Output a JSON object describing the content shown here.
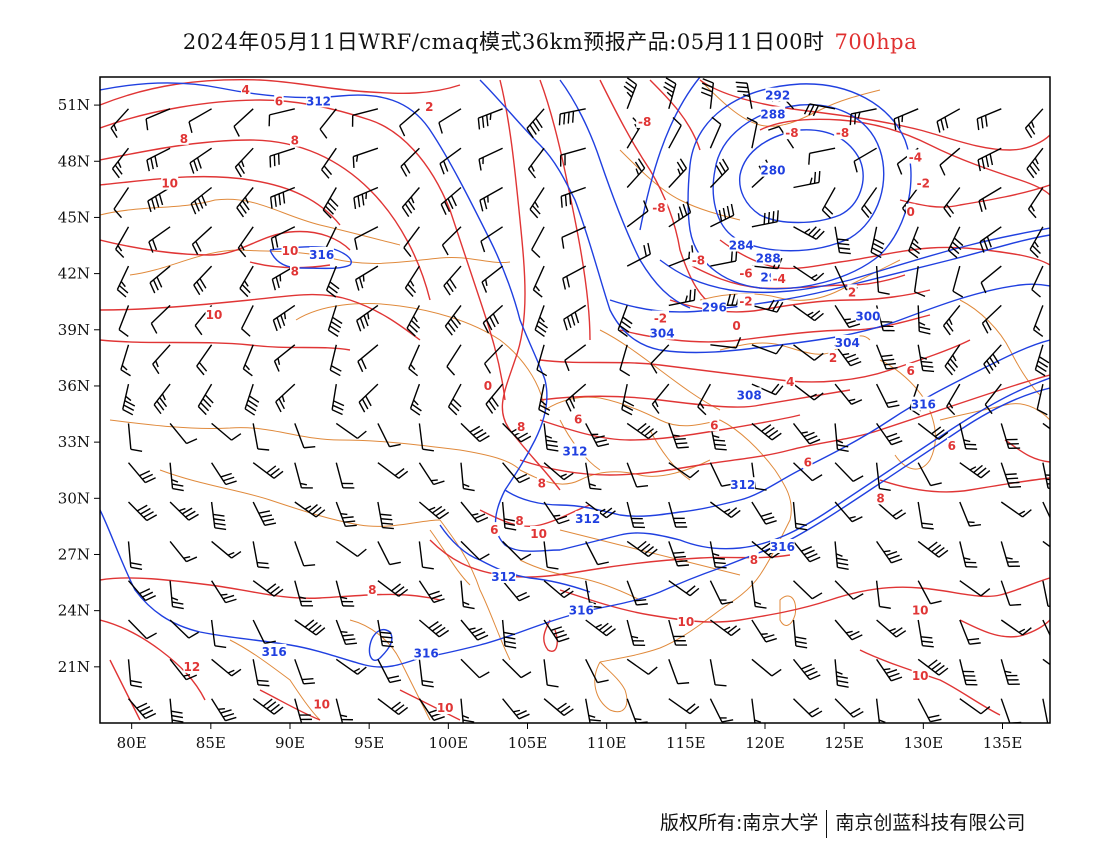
{
  "title": {
    "main": "2024年05月11日WRF/cmaq模式36km预报产品:05月11日00时",
    "level": "700hpa"
  },
  "axes": {
    "lon_min": 78,
    "lon_max": 138,
    "lat_min": 18,
    "lat_max": 52.5,
    "lat_ticks": [
      {
        "v": 51,
        "t": "51N"
      },
      {
        "v": 48,
        "t": "48N"
      },
      {
        "v": 45,
        "t": "45N"
      },
      {
        "v": 42,
        "t": "42N"
      },
      {
        "v": 39,
        "t": "39N"
      },
      {
        "v": 36,
        "t": "36N"
      },
      {
        "v": 33,
        "t": "33N"
      },
      {
        "v": 30,
        "t": "30N"
      },
      {
        "v": 27,
        "t": "27N"
      },
      {
        "v": 24,
        "t": "24N"
      },
      {
        "v": 21,
        "t": "21N"
      }
    ],
    "lon_ticks": [
      {
        "v": 80,
        "t": "80E"
      },
      {
        "v": 85,
        "t": "85E"
      },
      {
        "v": 90,
        "t": "90E"
      },
      {
        "v": 95,
        "t": "95E"
      },
      {
        "v": 100,
        "t": "100E"
      },
      {
        "v": 105,
        "t": "105E"
      },
      {
        "v": 110,
        "t": "110E"
      },
      {
        "v": 115,
        "t": "115E"
      },
      {
        "v": 120,
        "t": "120E"
      },
      {
        "v": 125,
        "t": "125E"
      },
      {
        "v": 130,
        "t": "130E"
      },
      {
        "v": 135,
        "t": "135E"
      }
    ]
  },
  "colors": {
    "height_contour": "#2040e0",
    "temperature_contour": "#e03535",
    "boundary": "#e08a3c",
    "wind_barb": "#000000",
    "frame": "#000000"
  },
  "height_labels": [
    {
      "t": "292",
      "lon": 120.8,
      "lat": 51.5
    },
    {
      "t": "288",
      "lon": 120.5,
      "lat": 50.5
    },
    {
      "t": "280",
      "lon": 120.5,
      "lat": 47.5
    },
    {
      "t": "284",
      "lon": 118.5,
      "lat": 43.5
    },
    {
      "t": "288",
      "lon": 120.2,
      "lat": 42.8
    },
    {
      "t": "292",
      "lon": 120.5,
      "lat": 41.8
    },
    {
      "t": "296",
      "lon": 116.8,
      "lat": 40.2
    },
    {
      "t": "300",
      "lon": 126.5,
      "lat": 39.7
    },
    {
      "t": "304",
      "lon": 125.2,
      "lat": 38.3
    },
    {
      "t": "304",
      "lon": 113.5,
      "lat": 38.8
    },
    {
      "t": "308",
      "lon": 119.0,
      "lat": 35.5
    },
    {
      "t": "312",
      "lon": 91.8,
      "lat": 51.2
    },
    {
      "t": "316",
      "lon": 92.0,
      "lat": 43.0
    },
    {
      "t": "312",
      "lon": 108.0,
      "lat": 32.5
    },
    {
      "t": "312",
      "lon": 118.6,
      "lat": 30.7
    },
    {
      "t": "312",
      "lon": 108.8,
      "lat": 28.9
    },
    {
      "t": "312",
      "lon": 103.5,
      "lat": 25.8
    },
    {
      "t": "316",
      "lon": 121.1,
      "lat": 27.4
    },
    {
      "t": "316",
      "lon": 108.4,
      "lat": 24.0
    },
    {
      "t": "316",
      "lon": 89.0,
      "lat": 21.8
    },
    {
      "t": "316",
      "lon": 98.6,
      "lat": 21.7
    },
    {
      "t": "316",
      "lon": 130.0,
      "lat": 35.0
    }
  ],
  "temperature_labels": [
    {
      "t": "4",
      "lon": 87.2,
      "lat": 51.8
    },
    {
      "t": "6",
      "lon": 89.3,
      "lat": 51.2
    },
    {
      "t": "2",
      "lon": 98.8,
      "lat": 50.9
    },
    {
      "t": "8",
      "lon": 83.3,
      "lat": 49.2
    },
    {
      "t": "8",
      "lon": 90.3,
      "lat": 49.1
    },
    {
      "t": "10",
      "lon": 82.4,
      "lat": 46.8
    },
    {
      "t": "-8",
      "lon": 112.4,
      "lat": 50.1
    },
    {
      "t": "-8",
      "lon": 121.7,
      "lat": 49.5
    },
    {
      "t": "-8",
      "lon": 124.9,
      "lat": 49.5
    },
    {
      "t": "-4",
      "lon": 129.5,
      "lat": 48.2
    },
    {
      "t": "-2",
      "lon": 130.0,
      "lat": 46.8
    },
    {
      "t": "0",
      "lon": 129.2,
      "lat": 45.3
    },
    {
      "t": "-8",
      "lon": 113.3,
      "lat": 45.5
    },
    {
      "t": "10",
      "lon": 90.0,
      "lat": 43.2
    },
    {
      "t": "8",
      "lon": 90.3,
      "lat": 42.1
    },
    {
      "t": "-8",
      "lon": 115.8,
      "lat": 42.7
    },
    {
      "t": "-6",
      "lon": 118.8,
      "lat": 42.0
    },
    {
      "t": "-4",
      "lon": 120.9,
      "lat": 41.7
    },
    {
      "t": "-2",
      "lon": 118.8,
      "lat": 40.5
    },
    {
      "t": "2",
      "lon": 125.5,
      "lat": 41.0
    },
    {
      "t": "10",
      "lon": 85.2,
      "lat": 39.8
    },
    {
      "t": "-2",
      "lon": 113.4,
      "lat": 39.6
    },
    {
      "t": "0",
      "lon": 118.2,
      "lat": 39.2
    },
    {
      "t": "2",
      "lon": 124.3,
      "lat": 37.5
    },
    {
      "t": "6",
      "lon": 129.2,
      "lat": 36.8
    },
    {
      "t": "4",
      "lon": 121.6,
      "lat": 36.2
    },
    {
      "t": "0",
      "lon": 102.5,
      "lat": 36.0
    },
    {
      "t": "6",
      "lon": 108.2,
      "lat": 34.2
    },
    {
      "t": "8",
      "lon": 104.6,
      "lat": 33.8
    },
    {
      "t": "6",
      "lon": 116.8,
      "lat": 33.9
    },
    {
      "t": "6",
      "lon": 131.8,
      "lat": 32.8
    },
    {
      "t": "6",
      "lon": 122.7,
      "lat": 31.9
    },
    {
      "t": "8",
      "lon": 105.9,
      "lat": 30.8
    },
    {
      "t": "8",
      "lon": 127.3,
      "lat": 30.0
    },
    {
      "t": "8",
      "lon": 104.5,
      "lat": 28.8
    },
    {
      "t": "6",
      "lon": 102.9,
      "lat": 28.3
    },
    {
      "t": "10",
      "lon": 105.7,
      "lat": 28.1
    },
    {
      "t": "8",
      "lon": 119.3,
      "lat": 26.7
    },
    {
      "t": "8",
      "lon": 95.2,
      "lat": 25.1
    },
    {
      "t": "10",
      "lon": 129.8,
      "lat": 24.0
    },
    {
      "t": "10",
      "lon": 115.0,
      "lat": 23.4
    },
    {
      "t": "12",
      "lon": 83.8,
      "lat": 21.0
    },
    {
      "t": "10",
      "lon": 92.0,
      "lat": 19.0
    },
    {
      "t": "10",
      "lon": 99.8,
      "lat": 18.8
    },
    {
      "t": "10",
      "lon": 129.8,
      "lat": 20.5
    }
  ],
  "footer": {
    "left": "版权所有:南京大学",
    "right": "南京创蓝科技有限公司"
  }
}
